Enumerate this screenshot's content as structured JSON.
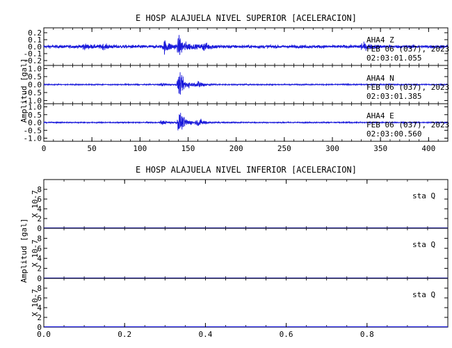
{
  "chart_data": [
    {
      "type": "line",
      "title": "E HOSP ALAJUELA NIVEL SUPERIOR [ACELERACION]",
      "ylabel": "Amplitud [gal]",
      "xlim": [
        0,
        420
      ],
      "x_ticks": [
        "0",
        "50",
        "100",
        "150",
        "200",
        "250",
        "300",
        "350",
        "400"
      ],
      "color": "#1a1adb",
      "panels": [
        {
          "name": "AHA4 Z",
          "station": "AHA4",
          "channel": "Z",
          "date": "FEB 06 (037), 2023",
          "time": "02:03:01.055",
          "ylim": [
            -0.27,
            0.27
          ],
          "y_ticks": [
            "0.2",
            "0.1",
            "0.0",
            "-0.1",
            "-0.2"
          ],
          "noise_amp": 0.035,
          "peak_amp": 0.2,
          "events": [
            [
              40,
              0.05
            ],
            [
              60,
              0.04
            ],
            [
              125,
              0.13
            ],
            [
              140,
              0.2
            ],
            [
              165,
              0.08
            ],
            [
              330,
              0.07
            ]
          ]
        },
        {
          "name": "AHA4 N",
          "station": "AHA4",
          "channel": "N",
          "date": "FEB 06 (037), 2023",
          "time": "02:03:01.385",
          "ylim": [
            -1.2,
            1.2
          ],
          "y_ticks": [
            "1.0",
            "0.5",
            "0.0",
            "-0.5",
            "-1.0"
          ],
          "noise_amp": 0.05,
          "peak_amp": 1.1,
          "events": [
            [
              122,
              0.15
            ],
            [
              140,
              1.1
            ],
            [
              160,
              0.35
            ]
          ]
        },
        {
          "name": "AHA4 E",
          "station": "AHA4",
          "channel": "E",
          "date": "FEB 06 (037), 2023",
          "time": "02:03:00.560",
          "ylim": [
            -1.2,
            1.2
          ],
          "y_ticks": [
            "1.0",
            "0.5",
            "0.0",
            "-0.5",
            "-1.0"
          ],
          "noise_amp": 0.05,
          "peak_amp": 1.1,
          "events": [
            [
              122,
              0.2
            ],
            [
              140,
              1.05
            ],
            [
              160,
              0.35
            ]
          ]
        }
      ]
    },
    {
      "type": "line",
      "title": "E HOSP ALAJUELA NIVEL INFERIOR [ACELERACION]",
      "ylabel": "Amplitud [gal]",
      "xlim": [
        0,
        1
      ],
      "x_ticks": [
        "0.0",
        "0.2",
        "0.4",
        "0.6",
        "0.8"
      ],
      "color": "#1a1adb",
      "panels": [
        {
          "name": "sta Q",
          "station": "sta",
          "channel": "Q",
          "unit_label": "X 10-7",
          "ylim": [
            0,
            10
          ],
          "y_ticks": [
            "8",
            "6",
            "4",
            "2",
            "0"
          ],
          "values": [
            0,
            0
          ]
        },
        {
          "name": "sta Q",
          "station": "sta",
          "channel": "Q",
          "unit_label": "X 10-7",
          "ylim": [
            0,
            10
          ],
          "y_ticks": [
            "8",
            "6",
            "4",
            "2",
            "0"
          ],
          "values": [
            0,
            0
          ]
        },
        {
          "name": "sta Q",
          "station": "sta",
          "channel": "Q",
          "unit_label": "X 10-7",
          "ylim": [
            0,
            10
          ],
          "y_ticks": [
            "8",
            "6",
            "4",
            "2",
            "0"
          ],
          "values": [
            0,
            0
          ]
        }
      ]
    }
  ]
}
